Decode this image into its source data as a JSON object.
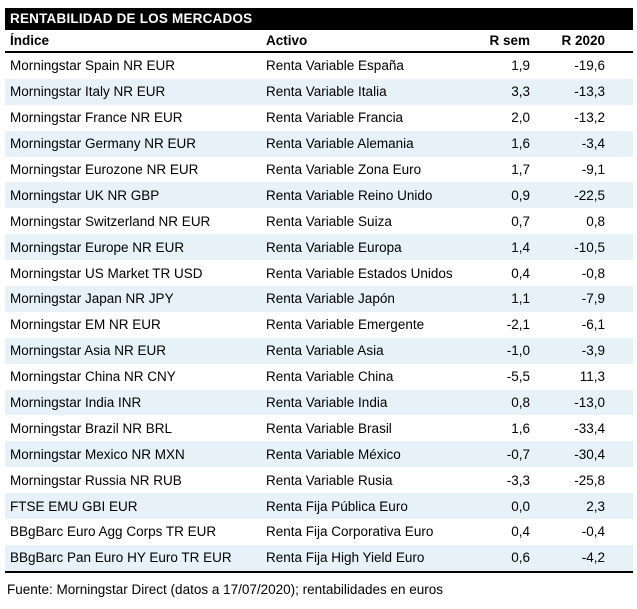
{
  "title": "RENTABILIDAD DE LOS MERCADOS",
  "table": {
    "columns": {
      "indice": "Índice",
      "activo": "Activo",
      "r_sem": "R sem",
      "r_2020": "R 2020"
    },
    "rows": [
      {
        "indice": "Morningstar Spain NR EUR",
        "activo": "Renta Variable España",
        "r_sem": "1,9",
        "r_2020": "-19,6"
      },
      {
        "indice": "Morningstar Italy NR EUR",
        "activo": "Renta Variable Italia",
        "r_sem": "3,3",
        "r_2020": "-13,3"
      },
      {
        "indice": "Morningstar France NR EUR",
        "activo": "Renta Variable Francia",
        "r_sem": "2,0",
        "r_2020": "-13,2"
      },
      {
        "indice": "Morningstar Germany NR EUR",
        "activo": "Renta Variable Alemania",
        "r_sem": "1,6",
        "r_2020": "-3,4"
      },
      {
        "indice": "Morningstar Eurozone NR EUR",
        "activo": "Renta Variable Zona Euro",
        "r_sem": "1,7",
        "r_2020": "-9,1"
      },
      {
        "indice": "Morningstar UK NR GBP",
        "activo": "Renta Variable Reino Unido",
        "r_sem": "0,9",
        "r_2020": "-22,5"
      },
      {
        "indice": "Morningstar Switzerland NR EUR",
        "activo": "Renta Variable Suiza",
        "r_sem": "0,7",
        "r_2020": "0,8"
      },
      {
        "indice": "Morningstar Europe NR EUR",
        "activo": "Renta Variable Europa",
        "r_sem": "1,4",
        "r_2020": "-10,5"
      },
      {
        "indice": "Morningstar US Market TR USD",
        "activo": "Renta Variable Estados Unidos",
        "r_sem": "0,4",
        "r_2020": "-0,8"
      },
      {
        "indice": "Morningstar Japan NR JPY",
        "activo": "Renta Variable Japón",
        "r_sem": "1,1",
        "r_2020": "-7,9"
      },
      {
        "indice": "Morningstar EM NR EUR",
        "activo": "Renta Variable Emergente",
        "r_sem": "-2,1",
        "r_2020": "-6,1"
      },
      {
        "indice": "Morningstar Asia NR EUR",
        "activo": "Renta Variable Asia",
        "r_sem": "-1,0",
        "r_2020": "-3,9"
      },
      {
        "indice": "Morningstar China NR CNY",
        "activo": "Renta Variable China",
        "r_sem": "-5,5",
        "r_2020": "11,3"
      },
      {
        "indice": "Morningstar India INR",
        "activo": "Renta Variable India",
        "r_sem": "0,8",
        "r_2020": "-13,0"
      },
      {
        "indice": "Morningstar Brazil NR BRL",
        "activo": "Renta Variable Brasil",
        "r_sem": "1,6",
        "r_2020": "-33,4"
      },
      {
        "indice": "Morningstar Mexico NR MXN",
        "activo": "Renta Variable México",
        "r_sem": "-0,7",
        "r_2020": "-30,4"
      },
      {
        "indice": "Morningstar Russia NR RUB",
        "activo": "Renta Variable Rusia",
        "r_sem": "-3,3",
        "r_2020": "-25,8"
      },
      {
        "indice": "FTSE EMU GBI EUR",
        "activo": "Renta Fija Pública Euro",
        "r_sem": "0,0",
        "r_2020": "2,3"
      },
      {
        "indice": "BBgBarc Euro Agg Corps TR EUR",
        "activo": "Renta Fija Corporativa Euro",
        "r_sem": "0,4",
        "r_2020": "-0,4"
      },
      {
        "indice": "BBgBarc Pan Euro HY Euro TR EUR",
        "activo": "Renta Fija High Yield Euro",
        "r_sem": "0,6",
        "r_2020": "-4,2"
      }
    ]
  },
  "footer": "Fuente: Morningstar Direct (datos a 17/07/2020); rentabilidades en euros",
  "colors": {
    "header_bg": "#000000",
    "header_fg": "#ffffff",
    "alt_row": "#e6f2f8",
    "text": "#000000"
  }
}
